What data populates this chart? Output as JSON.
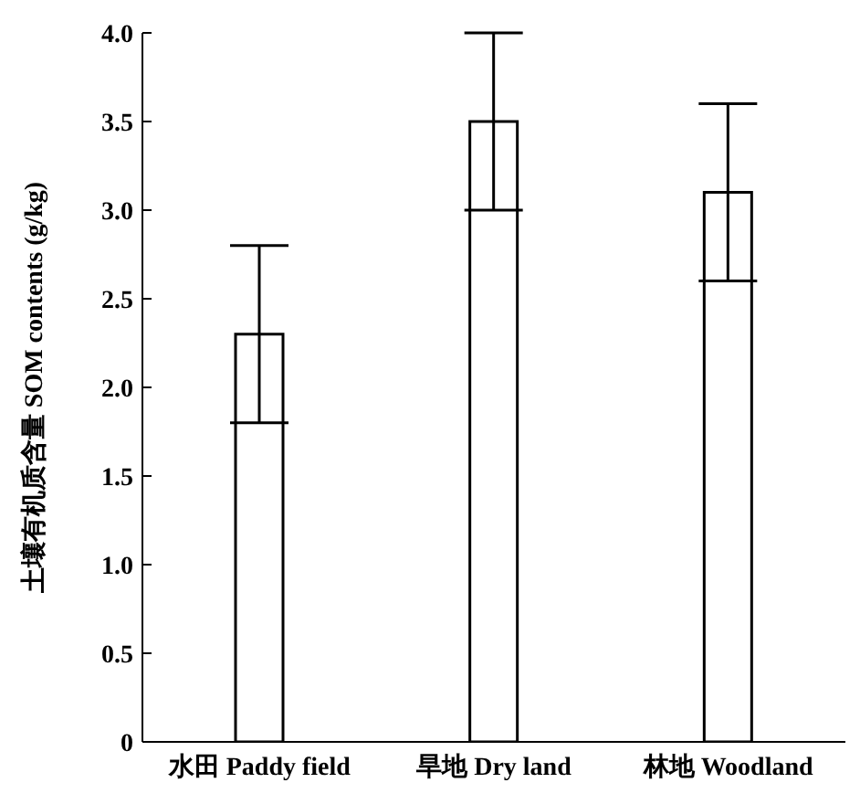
{
  "chart_data": {
    "type": "bar",
    "ylabel": "土壤有机质含量 SOM contents (g/kg)",
    "categories": [
      "水田 Paddy field",
      "旱地 Dry land",
      "林地 Woodland"
    ],
    "values": [
      2.3,
      3.5,
      3.1
    ],
    "errors": [
      0.5,
      0.5,
      0.5
    ],
    "color": "#ffffff",
    "ylim": [
      0,
      4
    ],
    "yticks": [
      0,
      {
        "value": 0.5,
        "label": "0.5"
      },
      {
        "value": 1,
        "label": "1.0"
      },
      {
        "value": 1.5,
        "label": "1.5"
      },
      {
        "value": 2,
        "label": "2.0"
      },
      {
        "value": 2.5,
        "label": "2.5"
      },
      {
        "value": 3,
        "label": "3.0"
      },
      {
        "value": 3.5,
        "label": "3.5"
      },
      {
        "value": 4,
        "label": "4.0"
      }
    ],
    "grid": false,
    "legend": false
  }
}
